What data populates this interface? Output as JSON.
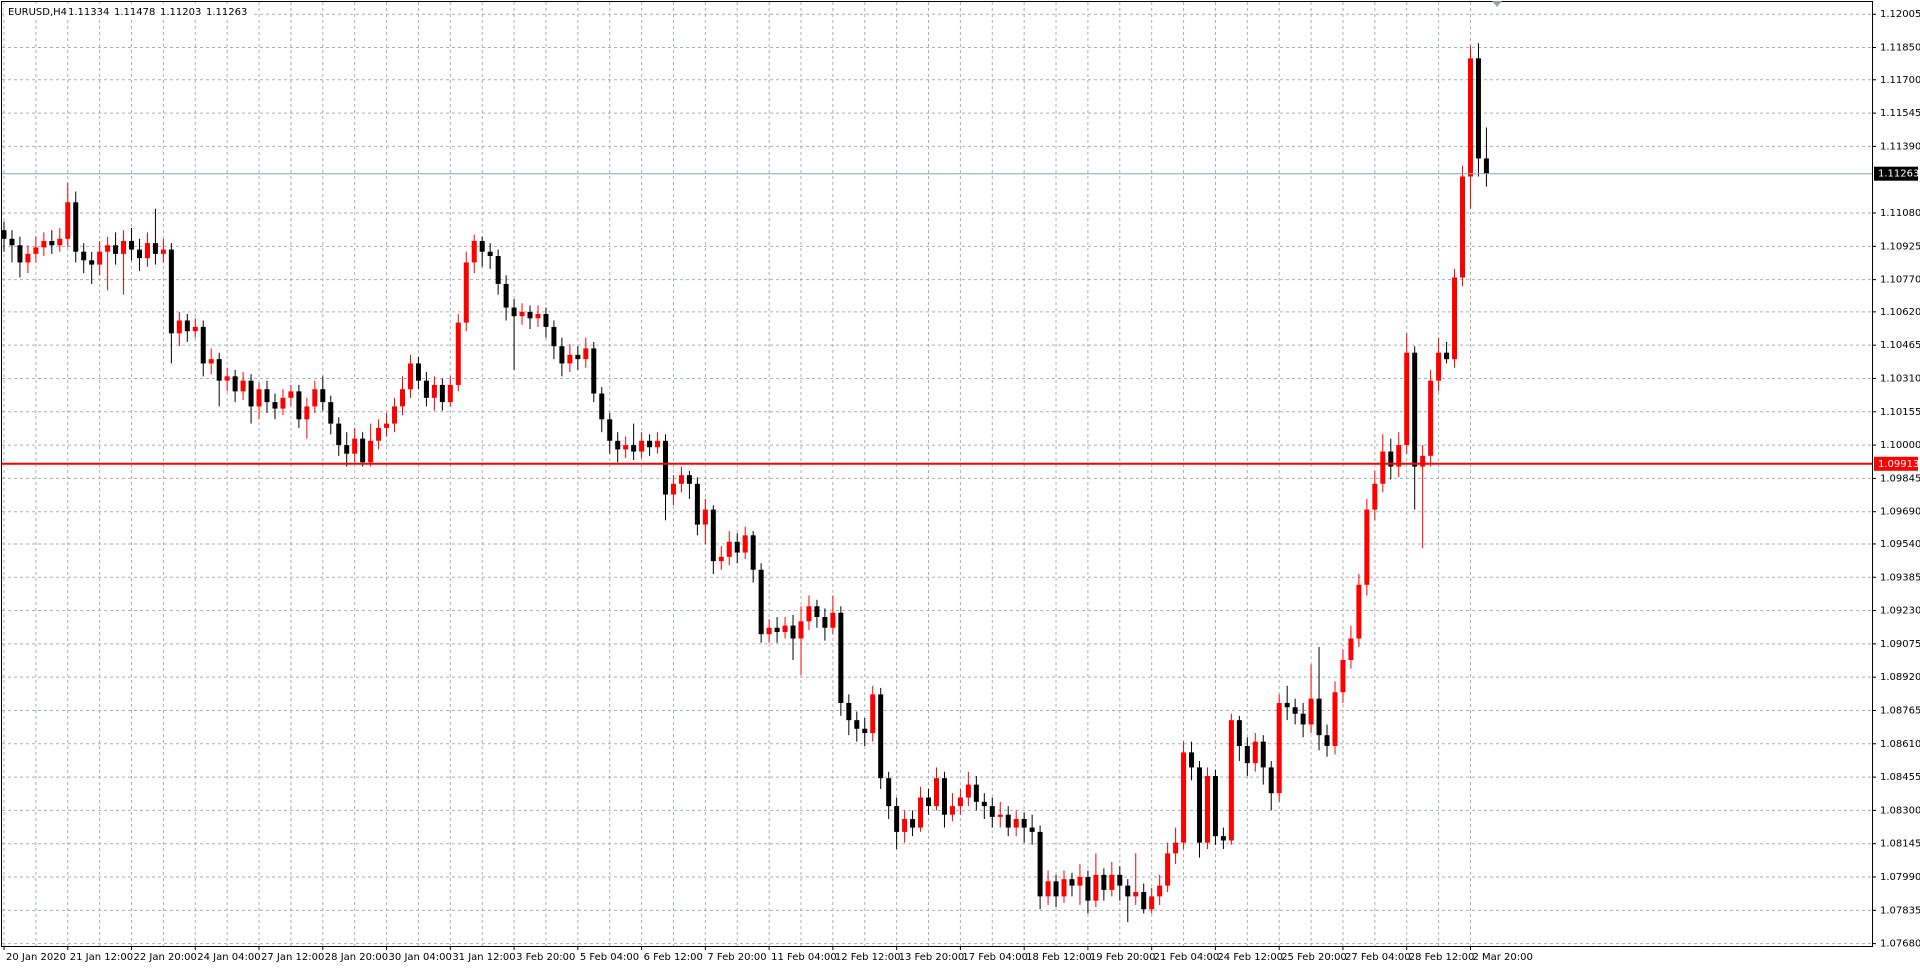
{
  "chart_data": {
    "type": "candlestick",
    "symbol": "EURUSD,H4",
    "up_color": "#ff0000",
    "down_color": "#000000",
    "grid": true,
    "ylim": [
      1.07669,
      1.12062
    ],
    "yticks": [
      {
        "value": 1.12005,
        "label": "1.12005"
      },
      {
        "value": 1.1185,
        "label": "1.11850"
      },
      {
        "value": 1.117,
        "label": "1.11700"
      },
      {
        "value": 1.11545,
        "label": "1.11545"
      },
      {
        "value": 1.1139,
        "label": "1.11390"
      },
      {
        "value": 1.1108,
        "label": "1.11080"
      },
      {
        "value": 1.10925,
        "label": "1.10925"
      },
      {
        "value": 1.1077,
        "label": "1.10770"
      },
      {
        "value": 1.1062,
        "label": "1.10620"
      },
      {
        "value": 1.10465,
        "label": "1.10465"
      },
      {
        "value": 1.1031,
        "label": "1.10310"
      },
      {
        "value": 1.10155,
        "label": "1.10155"
      },
      {
        "value": 1.1,
        "label": "1.10000"
      },
      {
        "value": 1.09845,
        "label": "1.09845"
      },
      {
        "value": 1.0969,
        "label": "1.09690"
      },
      {
        "value": 1.0954,
        "label": "1.09540"
      },
      {
        "value": 1.09385,
        "label": "1.09385"
      },
      {
        "value": 1.0923,
        "label": "1.09230"
      },
      {
        "value": 1.09075,
        "label": "1.09075"
      },
      {
        "value": 1.0892,
        "label": "1.08920"
      },
      {
        "value": 1.08765,
        "label": "1.08765"
      },
      {
        "value": 1.0861,
        "label": "1.08610"
      },
      {
        "value": 1.08455,
        "label": "1.08455"
      },
      {
        "value": 1.083,
        "label": "1.08300"
      },
      {
        "value": 1.08145,
        "label": "1.08145"
      },
      {
        "value": 1.0799,
        "label": "1.07990"
      },
      {
        "value": 1.07835,
        "label": "1.07835"
      },
      {
        "value": 1.0768,
        "label": "1.07680"
      }
    ],
    "hline": {
      "value": 1.09913,
      "color": "#ff0000"
    },
    "categories": [
      "20 Jan 2020",
      null,
      null,
      null,
      null,
      null,
      null,
      null,
      "21 Jan 12:00",
      null,
      null,
      null,
      null,
      null,
      null,
      null,
      "22 Jan 20:00",
      null,
      null,
      null,
      null,
      null,
      null,
      null,
      "24 Jan 04:00",
      null,
      null,
      null,
      null,
      null,
      null,
      null,
      "27 Jan 12:00",
      null,
      null,
      null,
      null,
      null,
      null,
      null,
      "28 Jan 20:00",
      null,
      null,
      null,
      null,
      null,
      null,
      null,
      "30 Jan 04:00",
      null,
      null,
      null,
      null,
      null,
      null,
      null,
      "31 Jan 12:00",
      null,
      null,
      null,
      null,
      null,
      null,
      null,
      "3 Feb 20:00",
      null,
      null,
      null,
      null,
      null,
      null,
      null,
      "5 Feb 04:00",
      null,
      null,
      null,
      null,
      null,
      null,
      null,
      "6 Feb 12:00",
      null,
      null,
      null,
      null,
      null,
      null,
      null,
      "7 Feb 20:00",
      null,
      null,
      null,
      null,
      null,
      null,
      null,
      "11 Feb 04:00",
      null,
      null,
      null,
      null,
      null,
      null,
      null,
      "12 Feb 12:00",
      null,
      null,
      null,
      null,
      null,
      null,
      null,
      "13 Feb 20:00",
      null,
      null,
      null,
      null,
      null,
      null,
      null,
      "17 Feb 04:00",
      null,
      null,
      null,
      null,
      null,
      null,
      null,
      "18 Feb 12:00",
      null,
      null,
      null,
      null,
      null,
      null,
      null,
      "19 Feb 20:00",
      null,
      null,
      null,
      null,
      null,
      null,
      null,
      "21 Feb 04:00",
      null,
      null,
      null,
      null,
      null,
      null,
      null,
      "24 Feb 12:00",
      null,
      null,
      null,
      null,
      null,
      null,
      null,
      "25 Feb 20:00",
      null,
      null,
      null,
      null,
      null,
      null,
      null,
      "27 Feb 04:00",
      null,
      null,
      null,
      null,
      null,
      null,
      null,
      "28 Feb 12:00",
      null,
      null,
      null,
      null,
      null,
      null,
      null,
      "2 Mar 20:00",
      null,
      null
    ],
    "candles": [
      [
        1.11,
        1.1104,
        1.109,
        1.1096
      ],
      [
        1.1096,
        1.11,
        1.1085,
        1.1093
      ],
      [
        1.1093,
        1.1097,
        1.1078,
        1.1085
      ],
      [
        1.1085,
        1.1093,
        1.108,
        1.1089
      ],
      [
        1.1089,
        1.1097,
        1.1085,
        1.1092
      ],
      [
        1.1092,
        1.1099,
        1.1088,
        1.1095
      ],
      [
        1.1095,
        1.11,
        1.1089,
        1.1093
      ],
      [
        1.1093,
        1.1101,
        1.109,
        1.1096
      ],
      [
        1.1096,
        1.1122,
        1.1092,
        1.1113
      ],
      [
        1.1113,
        1.1118,
        1.1085,
        1.109
      ],
      [
        1.109,
        1.1094,
        1.108,
        1.1086
      ],
      [
        1.1086,
        1.109,
        1.1075,
        1.1084
      ],
      [
        1.1084,
        1.1095,
        1.1079,
        1.109
      ],
      [
        1.109,
        1.1097,
        1.1072,
        1.1093
      ],
      [
        1.1093,
        1.1099,
        1.1084,
        1.1089
      ],
      [
        1.1089,
        1.11,
        1.107,
        1.1095
      ],
      [
        1.1095,
        1.1101,
        1.1086,
        1.1091
      ],
      [
        1.1091,
        1.1096,
        1.1081,
        1.1087
      ],
      [
        1.1087,
        1.1099,
        1.1083,
        1.1094
      ],
      [
        1.1094,
        1.111,
        1.1084,
        1.1089
      ],
      [
        1.1089,
        1.1096,
        1.1085,
        1.1091
      ],
      [
        1.1091,
        1.1094,
        1.1038,
        1.1052
      ],
      [
        1.1052,
        1.1062,
        1.1046,
        1.1058
      ],
      [
        1.1058,
        1.1061,
        1.1048,
        1.1053
      ],
      [
        1.1053,
        1.1059,
        1.105,
        1.1055
      ],
      [
        1.1055,
        1.1058,
        1.1032,
        1.1038
      ],
      [
        1.1038,
        1.1045,
        1.1033,
        1.104
      ],
      [
        1.104,
        1.1043,
        1.1018,
        1.103
      ],
      [
        1.103,
        1.1036,
        1.1025,
        1.1032
      ],
      [
        1.1032,
        1.1035,
        1.102,
        1.1025
      ],
      [
        1.1025,
        1.1034,
        1.1021,
        1.103
      ],
      [
        1.103,
        1.1033,
        1.101,
        1.1018
      ],
      [
        1.1018,
        1.1029,
        1.1012,
        1.1026
      ],
      [
        1.1026,
        1.103,
        1.1015,
        1.102
      ],
      [
        1.102,
        1.1024,
        1.1012,
        1.1017
      ],
      [
        1.1017,
        1.1026,
        1.1014,
        1.1022
      ],
      [
        1.1022,
        1.1028,
        1.1018,
        1.1025
      ],
      [
        1.1025,
        1.1028,
        1.1008,
        1.1012
      ],
      [
        1.1012,
        1.1022,
        1.1003,
        1.1018
      ],
      [
        1.1018,
        1.103,
        1.1015,
        1.1026
      ],
      [
        1.1026,
        1.1032,
        1.1016,
        1.102
      ],
      [
        1.102,
        1.1023,
        1.1005,
        1.101
      ],
      [
        1.101,
        1.1013,
        1.0995,
        1.1
      ],
      [
        1.1,
        1.1006,
        1.099,
        1.0996
      ],
      [
        1.0996,
        1.1008,
        1.0992,
        1.1003
      ],
      [
        1.1003,
        1.1006,
        1.099,
        1.0992
      ],
      [
        1.0992,
        1.101,
        1.099,
        1.1002
      ],
      [
        1.1002,
        1.1012,
        1.0998,
        1.1008
      ],
      [
        1.1008,
        1.1015,
        1.1004,
        1.101
      ],
      [
        1.101,
        1.1022,
        1.1006,
        1.1018
      ],
      [
        1.1018,
        1.1032,
        1.1014,
        1.1026
      ],
      [
        1.1026,
        1.1042,
        1.1022,
        1.1038
      ],
      [
        1.1038,
        1.1041,
        1.1026,
        1.103
      ],
      [
        1.103,
        1.1034,
        1.1018,
        1.1022
      ],
      [
        1.1022,
        1.1032,
        1.1016,
        1.1028
      ],
      [
        1.1028,
        1.1031,
        1.1016,
        1.102
      ],
      [
        1.102,
        1.1032,
        1.1018,
        1.1028
      ],
      [
        1.1028,
        1.1061,
        1.1025,
        1.1057
      ],
      [
        1.1057,
        1.109,
        1.1053,
        1.1085
      ],
      [
        1.1085,
        1.1098,
        1.108,
        1.1095
      ],
      [
        1.1095,
        1.1097,
        1.1083,
        1.109
      ],
      [
        1.109,
        1.1094,
        1.1082,
        1.1088
      ],
      [
        1.1088,
        1.1091,
        1.107,
        1.1075
      ],
      [
        1.1075,
        1.1079,
        1.1058,
        1.1064
      ],
      [
        1.1064,
        1.1068,
        1.1035,
        1.106
      ],
      [
        1.106,
        1.1066,
        1.1056,
        1.1062
      ],
      [
        1.1062,
        1.1065,
        1.1054,
        1.1059
      ],
      [
        1.1059,
        1.1065,
        1.1055,
        1.1061
      ],
      [
        1.1061,
        1.1064,
        1.105,
        1.1055
      ],
      [
        1.1055,
        1.1058,
        1.104,
        1.1046
      ],
      [
        1.1046,
        1.105,
        1.1032,
        1.1038
      ],
      [
        1.1038,
        1.1047,
        1.1034,
        1.1042
      ],
      [
        1.1042,
        1.1046,
        1.1035,
        1.104
      ],
      [
        1.104,
        1.105,
        1.1036,
        1.1045
      ],
      [
        1.1045,
        1.1048,
        1.102,
        1.1024
      ],
      [
        1.1024,
        1.1027,
        1.1006,
        1.1012
      ],
      [
        1.1012,
        1.1015,
        1.0996,
        1.1002
      ],
      [
        1.1002,
        1.1006,
        1.0992,
        1.0998
      ],
      [
        1.0998,
        1.1004,
        1.0994,
        1.1
      ],
      [
        1.1,
        1.101,
        1.0993,
        1.0997
      ],
      [
        1.0997,
        1.1006,
        1.0994,
        1.1002
      ],
      [
        1.1002,
        1.1005,
        1.0995,
        1.0999
      ],
      [
        1.0999,
        1.1006,
        1.0996,
        1.1002
      ],
      [
        1.1002,
        1.1005,
        1.0965,
        1.0977
      ],
      [
        1.0977,
        1.0986,
        1.0972,
        1.0982
      ],
      [
        1.0982,
        1.099,
        1.0978,
        1.0986
      ],
      [
        1.0986,
        1.0988,
        1.0975,
        1.0982
      ],
      [
        1.0982,
        1.0985,
        1.0958,
        1.0963
      ],
      [
        1.0963,
        1.0975,
        1.0954,
        1.097
      ],
      [
        1.097,
        1.0972,
        1.094,
        1.0946
      ],
      [
        1.0946,
        1.0953,
        1.0942,
        1.0948
      ],
      [
        1.0948,
        1.096,
        1.0944,
        1.0955
      ],
      [
        1.0955,
        1.0959,
        1.0945,
        1.095
      ],
      [
        1.095,
        1.0962,
        1.0947,
        1.0958
      ],
      [
        1.0958,
        1.096,
        1.0936,
        1.0942
      ],
      [
        1.0942,
        1.0945,
        1.0908,
        1.0912
      ],
      [
        1.0912,
        1.0919,
        1.0908,
        1.0915
      ],
      [
        1.0915,
        1.092,
        1.0908,
        1.0913
      ],
      [
        1.0913,
        1.092,
        1.091,
        1.0916
      ],
      [
        1.0916,
        1.0921,
        1.09,
        1.091
      ],
      [
        1.091,
        1.0925,
        1.0893,
        1.0918
      ],
      [
        1.0918,
        1.093,
        1.0914,
        1.0925
      ],
      [
        1.0925,
        1.0928,
        1.0915,
        1.092
      ],
      [
        1.092,
        1.0924,
        1.0909,
        1.0915
      ],
      [
        1.0915,
        1.093,
        1.0912,
        1.0922
      ],
      [
        1.0922,
        1.0925,
        1.0874,
        1.088
      ],
      [
        1.088,
        1.0884,
        1.0865,
        1.0872
      ],
      [
        1.0872,
        1.0876,
        1.0862,
        1.0868
      ],
      [
        1.0868,
        1.0873,
        1.086,
        1.0866
      ],
      [
        1.0866,
        1.0888,
        1.0862,
        1.0884
      ],
      [
        1.0884,
        1.0887,
        1.084,
        1.0845
      ],
      [
        1.0845,
        1.0848,
        1.0826,
        1.0832
      ],
      [
        1.0832,
        1.0836,
        1.0812,
        1.082
      ],
      [
        1.082,
        1.083,
        1.0815,
        1.0826
      ],
      [
        1.0826,
        1.083,
        1.0818,
        1.0822
      ],
      [
        1.0822,
        1.0841,
        1.082,
        1.0836
      ],
      [
        1.0836,
        1.084,
        1.0828,
        1.0832
      ],
      [
        1.0832,
        1.085,
        1.083,
        1.0845
      ],
      [
        1.0845,
        1.0848,
        1.0822,
        1.0828
      ],
      [
        1.0828,
        1.0838,
        1.0825,
        1.0832
      ],
      [
        1.0832,
        1.084,
        1.0828,
        1.0836
      ],
      [
        1.0836,
        1.0848,
        1.0832,
        1.0842
      ],
      [
        1.0842,
        1.0846,
        1.083,
        1.0834
      ],
      [
        1.0834,
        1.0838,
        1.0826,
        1.0832
      ],
      [
        1.0832,
        1.0836,
        1.0822,
        1.0827
      ],
      [
        1.0827,
        1.0834,
        1.0822,
        1.0828
      ],
      [
        1.0828,
        1.0832,
        1.0818,
        1.0822
      ],
      [
        1.0822,
        1.083,
        1.0818,
        1.0826
      ],
      [
        1.0826,
        1.0829,
        1.0815,
        1.0822
      ],
      [
        1.0822,
        1.0828,
        1.0814,
        1.082
      ],
      [
        1.082,
        1.0823,
        1.0784,
        1.079
      ],
      [
        1.079,
        1.0802,
        1.0786,
        1.0797
      ],
      [
        1.0797,
        1.08,
        1.0785,
        1.079
      ],
      [
        1.079,
        1.0802,
        1.0787,
        1.0798
      ],
      [
        1.0798,
        1.0801,
        1.079,
        1.0795
      ],
      [
        1.0795,
        1.0805,
        1.0786,
        1.0799
      ],
      [
        1.0799,
        1.0802,
        1.0782,
        1.0788
      ],
      [
        1.0788,
        1.081,
        1.0785,
        1.08
      ],
      [
        1.08,
        1.0803,
        1.0788,
        1.0793
      ],
      [
        1.0793,
        1.0806,
        1.079,
        1.08
      ],
      [
        1.08,
        1.0804,
        1.0788,
        1.0795
      ],
      [
        1.0795,
        1.0798,
        1.0778,
        1.079
      ],
      [
        1.079,
        1.081,
        1.0786,
        1.0792
      ],
      [
        1.0792,
        1.0796,
        1.0782,
        1.0784
      ],
      [
        1.0784,
        1.0794,
        1.0782,
        1.079
      ],
      [
        1.079,
        1.08,
        1.0786,
        1.0795
      ],
      [
        1.0795,
        1.0815,
        1.0792,
        1.081
      ],
      [
        1.081,
        1.0822,
        1.0805,
        1.0815
      ],
      [
        1.0815,
        1.0862,
        1.0812,
        1.0857
      ],
      [
        1.0857,
        1.0862,
        1.0844,
        1.085
      ],
      [
        1.085,
        1.0853,
        1.0808,
        1.0815
      ],
      [
        1.0815,
        1.085,
        1.0812,
        1.0846
      ],
      [
        1.0846,
        1.0849,
        1.0814,
        1.0818
      ],
      [
        1.0818,
        1.0822,
        1.0812,
        1.0816
      ],
      [
        1.0816,
        1.0875,
        1.0814,
        1.0872
      ],
      [
        1.0872,
        1.0874,
        1.0853,
        1.086
      ],
      [
        1.086,
        1.0864,
        1.0846,
        1.0852
      ],
      [
        1.0852,
        1.0866,
        1.0848,
        1.0862
      ],
      [
        1.0862,
        1.0865,
        1.0842,
        1.085
      ],
      [
        1.085,
        1.0853,
        1.083,
        1.0838
      ],
      [
        1.0838,
        1.0884,
        1.0834,
        1.088
      ],
      [
        1.088,
        1.0888,
        1.0872,
        1.0878
      ],
      [
        1.0878,
        1.0882,
        1.087,
        1.0875
      ],
      [
        1.0875,
        1.088,
        1.0864,
        1.087
      ],
      [
        1.087,
        1.0898,
        1.0866,
        1.0882
      ],
      [
        1.0882,
        1.0906,
        1.0858,
        1.0865
      ],
      [
        1.0865,
        1.087,
        1.0855,
        1.086
      ],
      [
        1.086,
        1.089,
        1.0856,
        1.0885
      ],
      [
        1.0885,
        1.0905,
        1.088,
        1.09
      ],
      [
        1.09,
        1.0916,
        1.0896,
        1.091
      ],
      [
        1.091,
        1.094,
        1.0906,
        1.0935
      ],
      [
        1.0935,
        1.0975,
        1.093,
        1.097
      ],
      [
        1.097,
        1.0988,
        1.0965,
        1.0982
      ],
      [
        1.0982,
        1.1005,
        1.0978,
        1.0997
      ],
      [
        1.0997,
        1.1003,
        1.0984,
        1.099
      ],
      [
        1.099,
        1.1006,
        1.0985,
        1.1
      ],
      [
        1.1,
        1.1052,
        1.0996,
        1.1043
      ],
      [
        1.1043,
        1.1046,
        1.097,
        1.099
      ],
      [
        1.099,
        1.1,
        1.0952,
        1.0995
      ],
      [
        1.0995,
        1.1035,
        1.099,
        1.103
      ],
      [
        1.103,
        1.105,
        1.1025,
        1.1043
      ],
      [
        1.1043,
        1.1048,
        1.1038,
        1.104
      ],
      [
        1.104,
        1.1082,
        1.1036,
        1.1078
      ],
      [
        1.1078,
        1.113,
        1.1074,
        1.1125
      ],
      [
        1.1125,
        1.1186,
        1.111,
        1.118
      ],
      [
        1.118,
        1.1187,
        1.1125,
        1.11334
      ],
      [
        1.11334,
        1.11478,
        1.11203,
        1.11263
      ]
    ]
  }
}
